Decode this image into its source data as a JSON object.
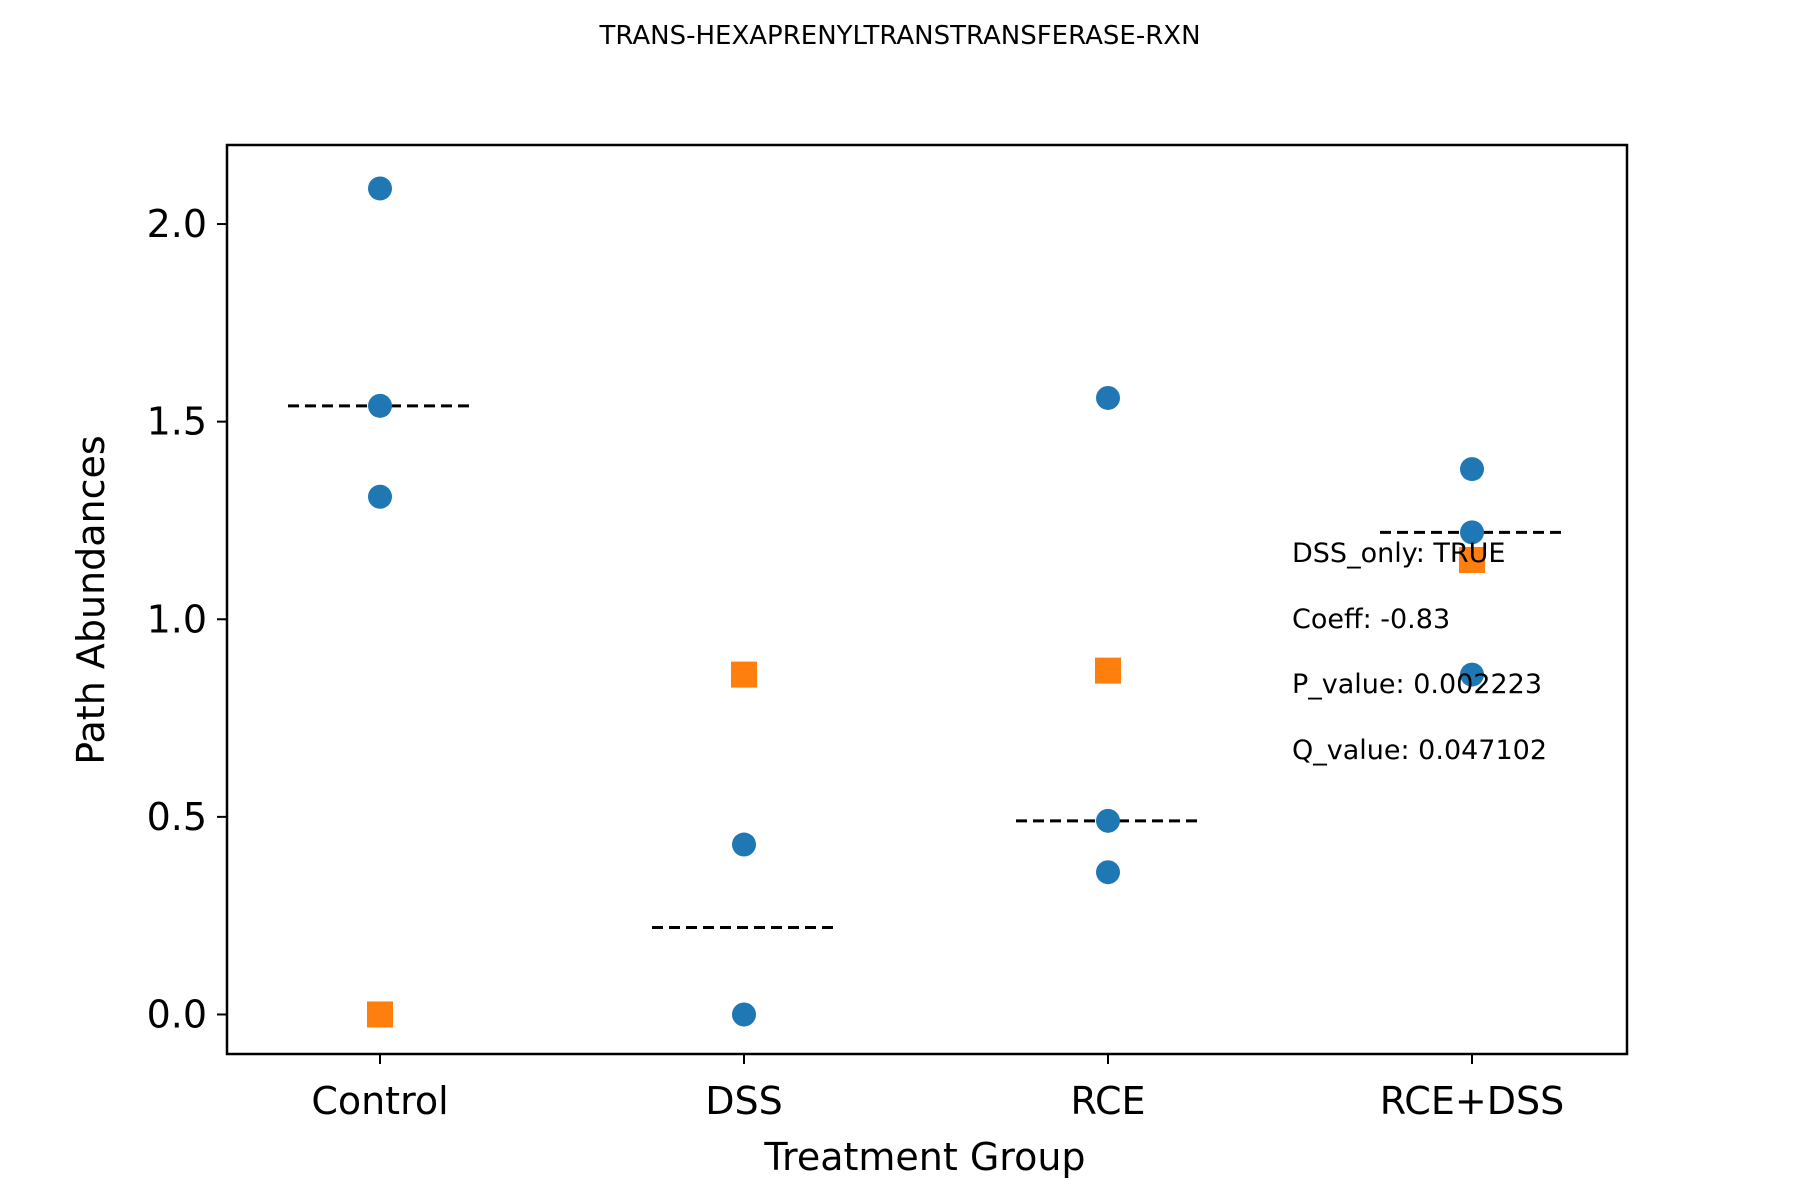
{
  "chart_data": {
    "type": "scatter",
    "title": "TRANS-HEXAPRENYLTRANSTRANSFERASE-RXN",
    "xlabel": "Treatment Group",
    "ylabel": "Path Abundances",
    "categories": [
      "Control",
      "DSS",
      "RCE",
      "RCE+DSS"
    ],
    "ylim": [
      -0.1,
      2.2
    ],
    "yticks": [
      0.0,
      0.5,
      1.0,
      1.5,
      2.0
    ],
    "ytick_labels": [
      "0.0",
      "0.5",
      "1.0",
      "1.5",
      "2.0"
    ],
    "grid": false,
    "colors": {
      "circle": "#1f77b4",
      "square": "#ff7f0e",
      "median_line": "#000000"
    },
    "series": [
      {
        "marker": "circle",
        "points": [
          {
            "category": "Control",
            "y": 2.09
          },
          {
            "category": "Control",
            "y": 1.54
          },
          {
            "category": "Control",
            "y": 1.31
          },
          {
            "category": "DSS",
            "y": 0.43
          },
          {
            "category": "DSS",
            "y": 0.0
          },
          {
            "category": "RCE",
            "y": 1.56
          },
          {
            "category": "RCE",
            "y": 0.49
          },
          {
            "category": "RCE",
            "y": 0.36
          },
          {
            "category": "RCE+DSS",
            "y": 1.38
          },
          {
            "category": "RCE+DSS",
            "y": 1.22
          },
          {
            "category": "RCE+DSS",
            "y": 0.86
          }
        ]
      },
      {
        "marker": "square",
        "points": [
          {
            "category": "Control",
            "y": 0.0
          },
          {
            "category": "DSS",
            "y": 0.86
          },
          {
            "category": "RCE",
            "y": 0.87
          },
          {
            "category": "RCE+DSS",
            "y": 1.15
          }
        ]
      }
    ],
    "medians": [
      {
        "category": "Control",
        "y": 1.54
      },
      {
        "category": "DSS",
        "y": 0.22
      },
      {
        "category": "RCE",
        "y": 0.49
      },
      {
        "category": "RCE+DSS",
        "y": 1.22
      }
    ],
    "annotations": [
      "DSS_only: TRUE",
      "Coeff: -0.83",
      "P_value: 0.002223",
      "Q_value: 0.047102"
    ]
  }
}
